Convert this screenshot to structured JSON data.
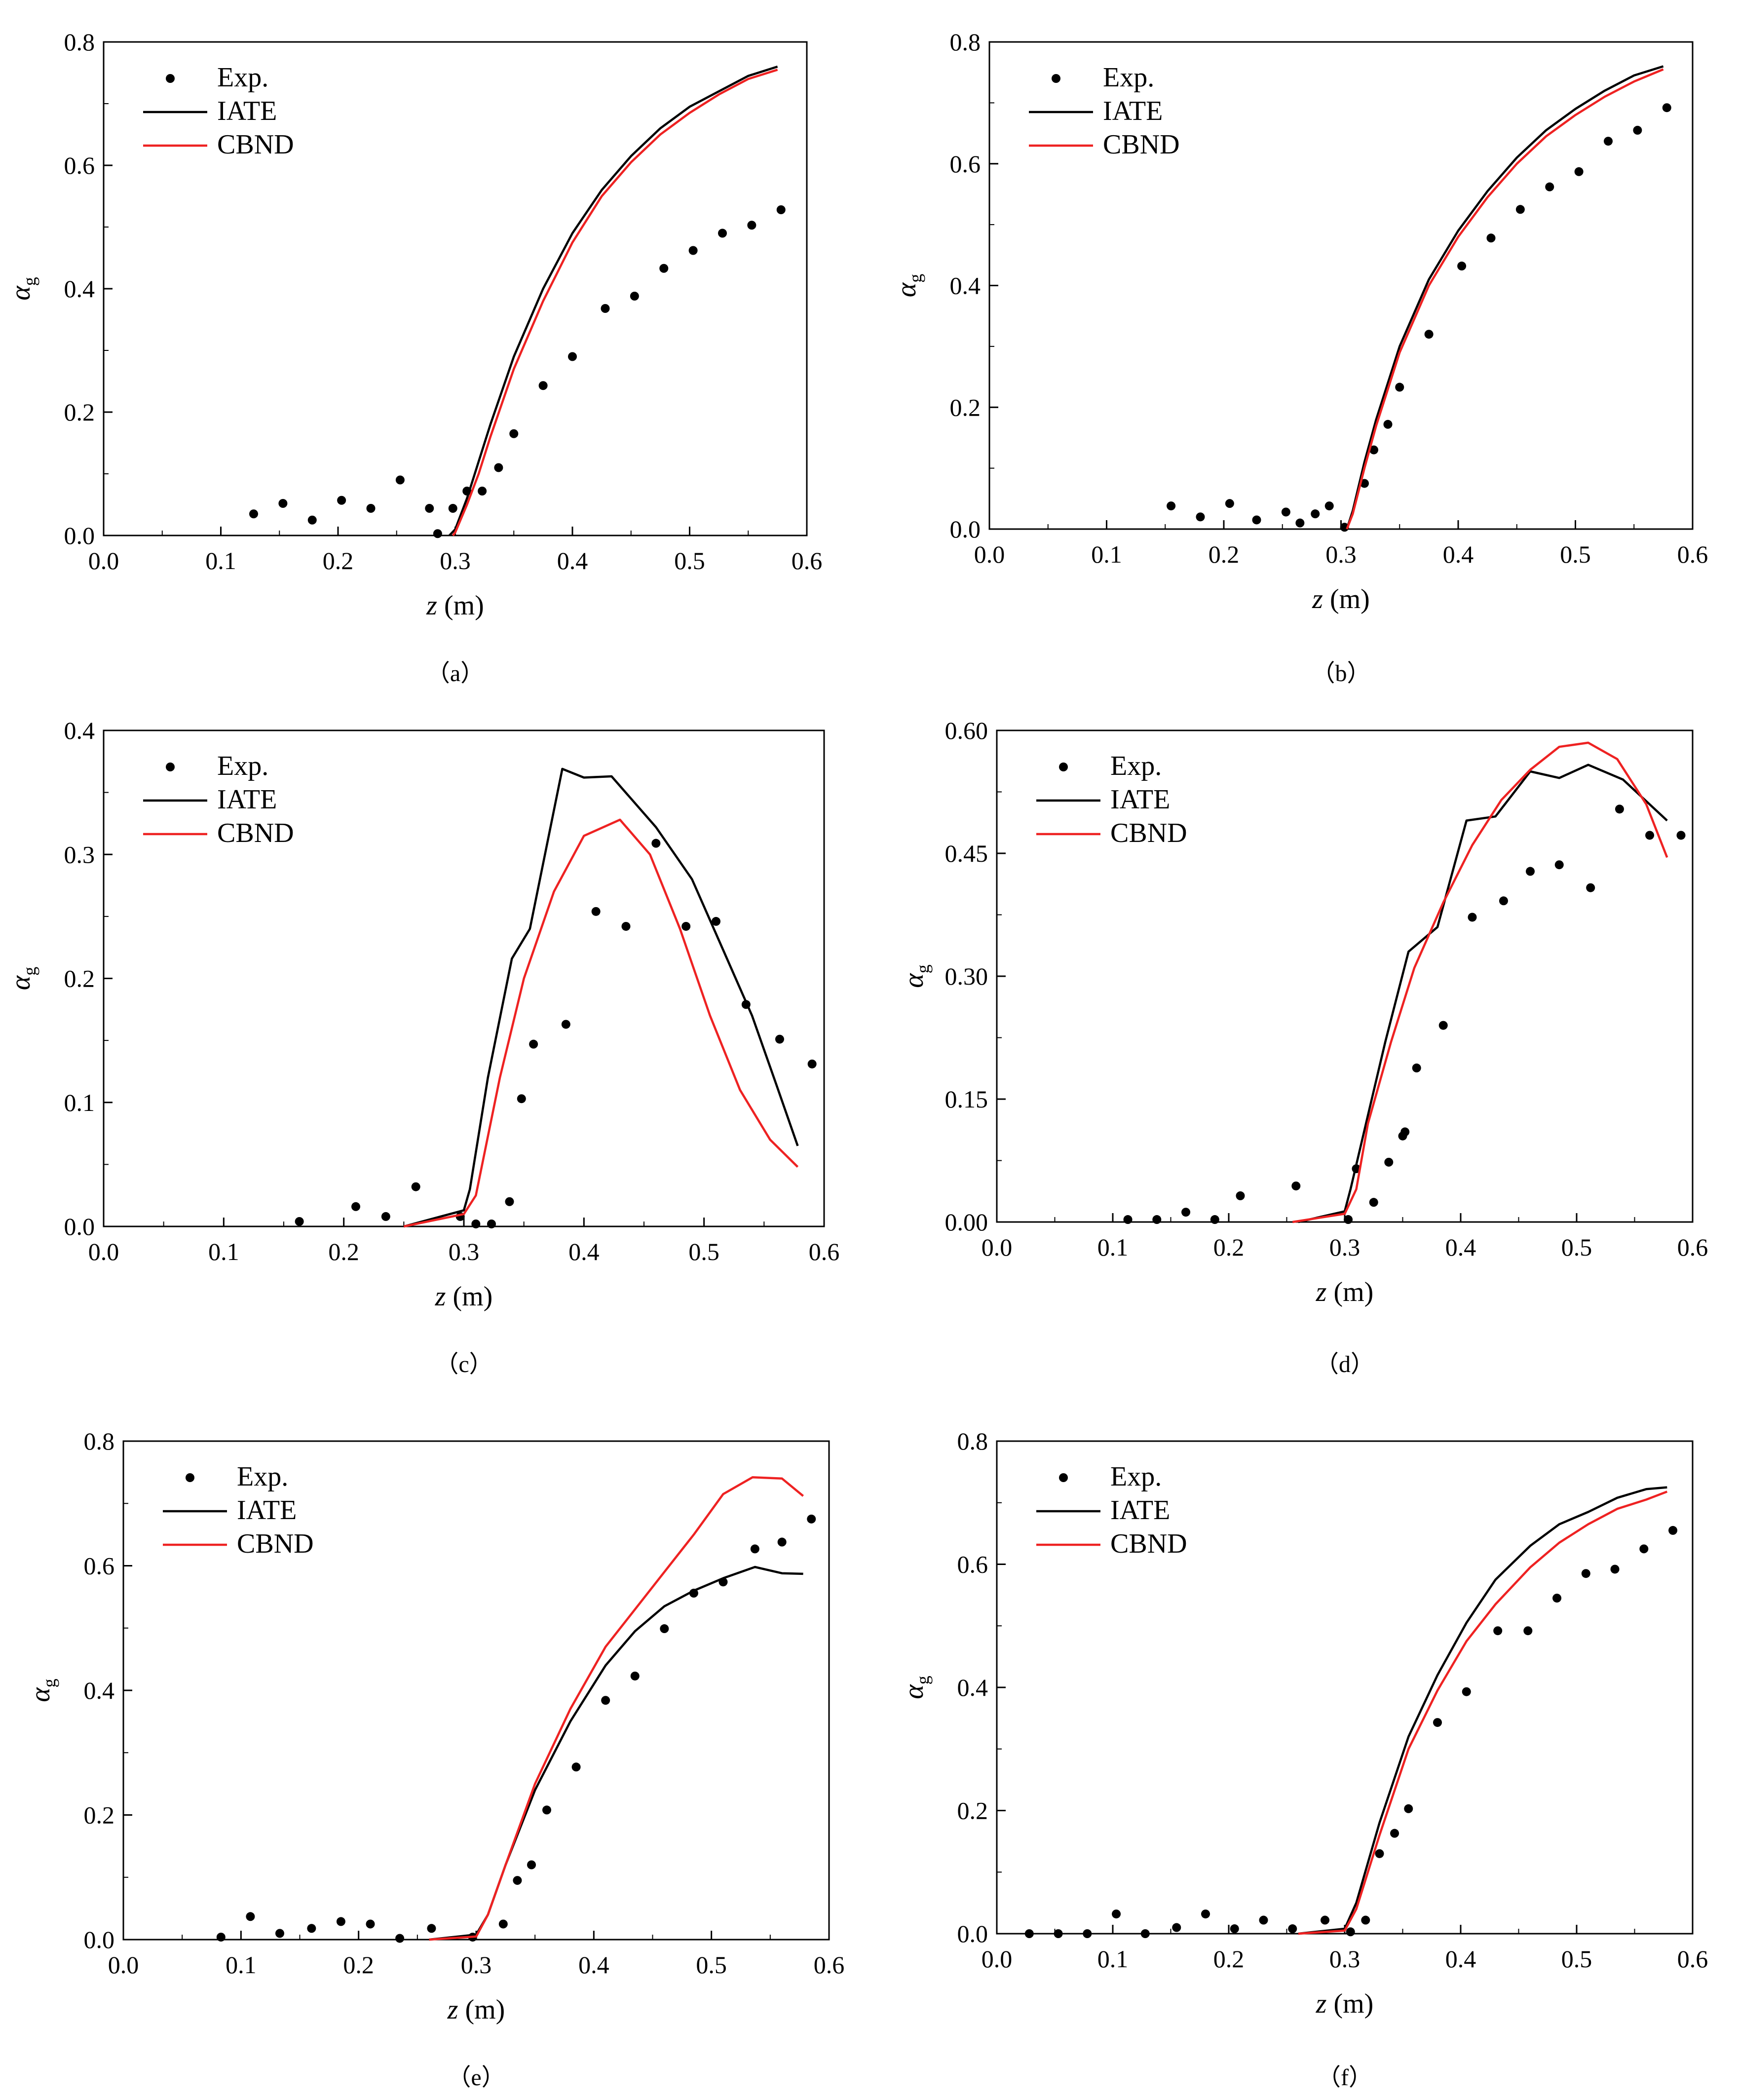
{
  "chart_data": [
    {
      "type": "scatter",
      "caption": "（a）",
      "xlabel": "z",
      "xlabel_unit": "(m)",
      "ylabel": "α",
      "ylabel_sub": "g",
      "xlim": [
        0,
        0.6
      ],
      "ylim": [
        0,
        0.8
      ],
      "xticks": [
        "0.0",
        "0.1",
        "0.2",
        "0.3",
        "0.4",
        "0.5",
        "0.6"
      ],
      "yticks": [
        "0.0",
        "0.2",
        "0.4",
        "0.6",
        "0.8"
      ],
      "legend_position": "top-left",
      "series": [
        {
          "name": "Exp.",
          "kind": "scatter",
          "color": "#000000",
          "x": [
            0.128,
            0.153,
            0.178,
            0.203,
            0.228,
            0.253,
            0.278,
            0.285,
            0.298,
            0.31,
            0.323,
            0.337,
            0.35,
            0.375,
            0.4,
            0.428,
            0.453,
            0.478,
            0.503,
            0.528,
            0.553,
            0.578
          ],
          "y": [
            0.035,
            0.052,
            0.025,
            0.057,
            0.044,
            0.09,
            0.044,
            0.003,
            0.044,
            0.072,
            0.072,
            0.11,
            0.165,
            0.243,
            0.29,
            0.368,
            0.388,
            0.433,
            0.462,
            0.49,
            0.503,
            0.528
          ]
        },
        {
          "name": "IATE",
          "kind": "line",
          "color": "#000000",
          "x": [
            0.295,
            0.3,
            0.31,
            0.32,
            0.33,
            0.35,
            0.375,
            0.4,
            0.425,
            0.45,
            0.475,
            0.5,
            0.525,
            0.55,
            0.575
          ],
          "y": [
            0.0,
            0.01,
            0.06,
            0.12,
            0.18,
            0.29,
            0.4,
            0.49,
            0.56,
            0.615,
            0.66,
            0.695,
            0.72,
            0.745,
            0.76
          ]
        },
        {
          "name": "CBND",
          "kind": "line",
          "color": "#ee2222",
          "x": [
            0.298,
            0.3,
            0.31,
            0.32,
            0.33,
            0.35,
            0.375,
            0.4,
            0.425,
            0.45,
            0.475,
            0.5,
            0.525,
            0.55,
            0.575
          ],
          "y": [
            0.0,
            0.005,
            0.05,
            0.1,
            0.16,
            0.27,
            0.38,
            0.475,
            0.55,
            0.605,
            0.65,
            0.685,
            0.715,
            0.74,
            0.755
          ]
        }
      ]
    },
    {
      "type": "scatter",
      "caption": "（b）",
      "xlabel": "z",
      "xlabel_unit": "(m)",
      "ylabel": "α",
      "ylabel_sub": "g",
      "xlim": [
        0,
        0.6
      ],
      "ylim": [
        0,
        0.8
      ],
      "xticks": [
        "0.0",
        "0.1",
        "0.2",
        "0.3",
        "0.4",
        "0.5",
        "0.6"
      ],
      "yticks": [
        "0.0",
        "0.2",
        "0.4",
        "0.6",
        "0.8"
      ],
      "legend_position": "top-left",
      "series": [
        {
          "name": "Exp.",
          "kind": "scatter",
          "color": "#000000",
          "x": [
            0.155,
            0.18,
            0.205,
            0.228,
            0.253,
            0.265,
            0.278,
            0.29,
            0.303,
            0.32,
            0.328,
            0.34,
            0.35,
            0.375,
            0.403,
            0.428,
            0.453,
            0.478,
            0.503,
            0.528,
            0.553,
            0.578
          ],
          "y": [
            0.038,
            0.02,
            0.042,
            0.015,
            0.028,
            0.01,
            0.025,
            0.038,
            0.003,
            0.075,
            0.13,
            0.172,
            0.233,
            0.32,
            0.432,
            0.478,
            0.525,
            0.562,
            0.587,
            0.637,
            0.655,
            0.692
          ]
        },
        {
          "name": "IATE",
          "kind": "line",
          "color": "#000000",
          "x": [
            0.305,
            0.31,
            0.32,
            0.33,
            0.35,
            0.375,
            0.4,
            0.425,
            0.45,
            0.475,
            0.5,
            0.525,
            0.55,
            0.575
          ],
          "y": [
            0.0,
            0.03,
            0.11,
            0.18,
            0.3,
            0.41,
            0.49,
            0.555,
            0.61,
            0.655,
            0.69,
            0.72,
            0.745,
            0.76
          ]
        },
        {
          "name": "CBND",
          "kind": "line",
          "color": "#ee2222",
          "x": [
            0.305,
            0.31,
            0.32,
            0.33,
            0.35,
            0.375,
            0.4,
            0.425,
            0.45,
            0.475,
            0.5,
            0.525,
            0.55,
            0.575
          ],
          "y": [
            0.0,
            0.025,
            0.1,
            0.17,
            0.29,
            0.4,
            0.48,
            0.545,
            0.6,
            0.645,
            0.68,
            0.71,
            0.735,
            0.755
          ]
        }
      ]
    },
    {
      "type": "scatter",
      "caption": "（c）",
      "xlabel": "z",
      "xlabel_unit": "(m)",
      "ylabel": "α",
      "ylabel_sub": "g",
      "xlim": [
        0,
        0.6
      ],
      "ylim": [
        0,
        0.4
      ],
      "xticks": [
        "0.0",
        "0.1",
        "0.2",
        "0.3",
        "0.4",
        "0.5",
        "0.6"
      ],
      "yticks": [
        "0.0",
        "0.1",
        "0.2",
        "0.3",
        "0.4"
      ],
      "legend_position": "top-left",
      "series": [
        {
          "name": "Exp.",
          "kind": "scatter",
          "color": "#000000",
          "x": [
            0.163,
            0.21,
            0.235,
            0.26,
            0.297,
            0.31,
            0.323,
            0.338,
            0.348,
            0.358,
            0.385,
            0.41,
            0.435,
            0.46,
            0.485,
            0.51,
            0.535,
            0.563,
            0.59
          ],
          "y": [
            0.004,
            0.016,
            0.008,
            0.032,
            0.008,
            0.002,
            0.002,
            0.02,
            0.103,
            0.147,
            0.163,
            0.254,
            0.242,
            0.309,
            0.242,
            0.246,
            0.179,
            0.151,
            0.131
          ]
        },
        {
          "name": "IATE",
          "kind": "line",
          "color": "#000000",
          "x": [
            0.25,
            0.3,
            0.305,
            0.32,
            0.34,
            0.355,
            0.382,
            0.4,
            0.423,
            0.46,
            0.49,
            0.515,
            0.54,
            0.56,
            0.578
          ],
          "y": [
            0.0,
            0.013,
            0.03,
            0.12,
            0.216,
            0.24,
            0.369,
            0.362,
            0.363,
            0.322,
            0.28,
            0.225,
            0.17,
            0.115,
            0.065
          ]
        },
        {
          "name": "CBND",
          "kind": "line",
          "color": "#ee2222",
          "x": [
            0.25,
            0.3,
            0.31,
            0.33,
            0.35,
            0.375,
            0.4,
            0.43,
            0.455,
            0.48,
            0.505,
            0.53,
            0.555,
            0.578
          ],
          "y": [
            0.0,
            0.01,
            0.025,
            0.12,
            0.2,
            0.27,
            0.315,
            0.328,
            0.3,
            0.24,
            0.17,
            0.11,
            0.07,
            0.048
          ]
        }
      ]
    },
    {
      "type": "scatter",
      "caption": "（d）",
      "xlabel": "z",
      "xlabel_unit": "(m)",
      "ylabel": "α",
      "ylabel_sub": "g",
      "xlim": [
        0,
        0.6
      ],
      "ylim": [
        0,
        0.6
      ],
      "xticks": [
        "0.0",
        "0.1",
        "0.2",
        "0.3",
        "0.4",
        "0.5",
        "0.6"
      ],
      "yticks": [
        "0.00",
        "0.15",
        "0.30",
        "0.45",
        "0.60"
      ],
      "legend_position": "top-left",
      "series": [
        {
          "name": "Exp.",
          "kind": "scatter",
          "color": "#000000",
          "x": [
            0.113,
            0.138,
            0.163,
            0.188,
            0.21,
            0.258,
            0.303,
            0.31,
            0.325,
            0.338,
            0.35,
            0.352,
            0.362,
            0.385,
            0.41,
            0.437,
            0.46,
            0.485,
            0.512,
            0.537,
            0.563,
            0.59
          ],
          "y": [
            0.003,
            0.003,
            0.012,
            0.003,
            0.032,
            0.044,
            0.003,
            0.065,
            0.024,
            0.073,
            0.105,
            0.11,
            0.188,
            0.24,
            0.372,
            0.392,
            0.428,
            0.436,
            0.408,
            0.504,
            0.472,
            0.472
          ]
        },
        {
          "name": "IATE",
          "kind": "line",
          "color": "#000000",
          "x": [
            0.26,
            0.3,
            0.305,
            0.32,
            0.335,
            0.355,
            0.38,
            0.405,
            0.43,
            0.46,
            0.485,
            0.51,
            0.54,
            0.578
          ],
          "y": [
            0.0,
            0.013,
            0.04,
            0.13,
            0.22,
            0.33,
            0.36,
            0.49,
            0.495,
            0.55,
            0.542,
            0.558,
            0.54,
            0.49
          ]
        },
        {
          "name": "CBND",
          "kind": "line",
          "color": "#ee2222",
          "x": [
            0.255,
            0.3,
            0.31,
            0.32,
            0.34,
            0.36,
            0.385,
            0.41,
            0.435,
            0.46,
            0.485,
            0.51,
            0.535,
            0.56,
            0.578
          ],
          "y": [
            0.0,
            0.01,
            0.04,
            0.12,
            0.22,
            0.31,
            0.39,
            0.46,
            0.515,
            0.552,
            0.58,
            0.585,
            0.565,
            0.51,
            0.445
          ]
        }
      ]
    },
    {
      "type": "scatter",
      "caption": "（e）",
      "xlabel": "z",
      "xlabel_unit": "(m)",
      "ylabel": "α",
      "ylabel_sub": "g",
      "xlim": [
        0,
        0.6
      ],
      "ylim": [
        0,
        0.8
      ],
      "xticks": [
        "0.0",
        "0.1",
        "0.2",
        "0.3",
        "0.4",
        "0.5",
        "0.6"
      ],
      "yticks": [
        "0.0",
        "0.2",
        "0.4",
        "0.6",
        "0.8"
      ],
      "legend_position": "top-left",
      "series": [
        {
          "name": "Exp.",
          "kind": "scatter",
          "color": "#000000",
          "x": [
            0.083,
            0.108,
            0.133,
            0.16,
            0.185,
            0.21,
            0.235,
            0.262,
            0.297,
            0.323,
            0.335,
            0.347,
            0.36,
            0.385,
            0.41,
            0.435,
            0.46,
            0.485,
            0.51,
            0.537,
            0.56,
            0.585
          ],
          "y": [
            0.004,
            0.037,
            0.01,
            0.018,
            0.029,
            0.025,
            0.002,
            0.018,
            0.004,
            0.025,
            0.095,
            0.12,
            0.208,
            0.277,
            0.384,
            0.423,
            0.499,
            0.556,
            0.574,
            0.627,
            0.638,
            0.675
          ]
        },
        {
          "name": "IATE",
          "kind": "line",
          "color": "#000000",
          "x": [
            0.26,
            0.3,
            0.31,
            0.325,
            0.35,
            0.38,
            0.41,
            0.435,
            0.46,
            0.485,
            0.51,
            0.537,
            0.56,
            0.578
          ],
          "y": [
            0.0,
            0.008,
            0.04,
            0.12,
            0.24,
            0.35,
            0.44,
            0.495,
            0.535,
            0.56,
            0.58,
            0.598,
            0.588,
            0.587
          ]
        },
        {
          "name": "CBND",
          "kind": "line",
          "color": "#ee2222",
          "x": [
            0.26,
            0.3,
            0.31,
            0.325,
            0.35,
            0.38,
            0.41,
            0.435,
            0.46,
            0.485,
            0.51,
            0.535,
            0.56,
            0.578
          ],
          "y": [
            0.0,
            0.005,
            0.04,
            0.12,
            0.25,
            0.37,
            0.47,
            0.53,
            0.59,
            0.65,
            0.715,
            0.742,
            0.74,
            0.712
          ]
        }
      ]
    },
    {
      "type": "scatter",
      "caption": "（f）",
      "xlabel": "z",
      "xlabel_unit": "(m)",
      "ylabel": "α",
      "ylabel_sub": "g",
      "xlim": [
        0,
        0.6
      ],
      "ylim": [
        0,
        0.8
      ],
      "xticks": [
        "0.0",
        "0.1",
        "0.2",
        "0.3",
        "0.4",
        "0.5",
        "0.6"
      ],
      "yticks": [
        "0.0",
        "0.2",
        "0.4",
        "0.6",
        "0.8"
      ],
      "legend_position": "top-left",
      "series": [
        {
          "name": "Exp.",
          "kind": "scatter",
          "color": "#000000",
          "x": [
            0.028,
            0.053,
            0.078,
            0.103,
            0.128,
            0.155,
            0.18,
            0.205,
            0.23,
            0.255,
            0.283,
            0.305,
            0.318,
            0.33,
            0.343,
            0.355,
            0.38,
            0.405,
            0.432,
            0.458,
            0.483,
            0.508,
            0.533,
            0.558,
            0.583
          ],
          "y": [
            0.0,
            0.0,
            0.0,
            0.032,
            0.0,
            0.01,
            0.032,
            0.008,
            0.022,
            0.008,
            0.022,
            0.003,
            0.022,
            0.13,
            0.163,
            0.203,
            0.343,
            0.393,
            0.492,
            0.492,
            0.545,
            0.585,
            0.592,
            0.625,
            0.655
          ]
        },
        {
          "name": "IATE",
          "kind": "line",
          "color": "#000000",
          "x": [
            0.26,
            0.3,
            0.31,
            0.33,
            0.355,
            0.38,
            0.405,
            0.43,
            0.46,
            0.485,
            0.51,
            0.535,
            0.56,
            0.578
          ],
          "y": [
            0.0,
            0.008,
            0.05,
            0.18,
            0.32,
            0.42,
            0.505,
            0.575,
            0.63,
            0.665,
            0.685,
            0.708,
            0.722,
            0.725
          ]
        },
        {
          "name": "CBND",
          "kind": "line",
          "color": "#ee2222",
          "x": [
            0.26,
            0.3,
            0.31,
            0.33,
            0.355,
            0.38,
            0.405,
            0.43,
            0.46,
            0.485,
            0.51,
            0.535,
            0.56,
            0.578
          ],
          "y": [
            0.0,
            0.005,
            0.04,
            0.16,
            0.3,
            0.395,
            0.475,
            0.535,
            0.595,
            0.635,
            0.665,
            0.69,
            0.705,
            0.718
          ]
        }
      ]
    }
  ]
}
